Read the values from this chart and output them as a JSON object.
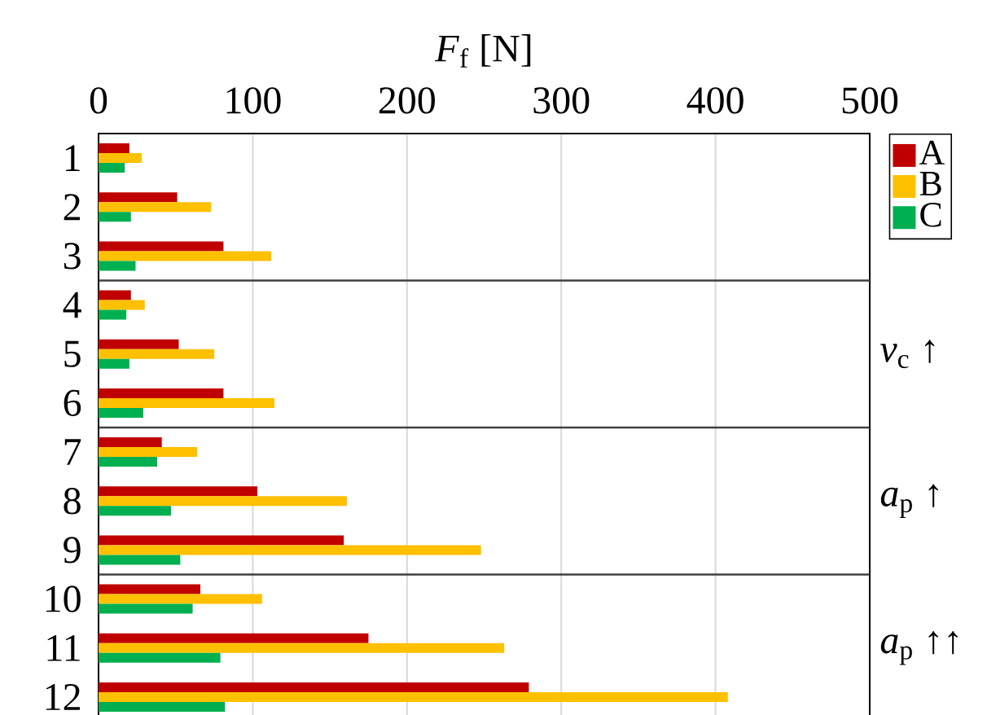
{
  "chart_data": {
    "type": "bar",
    "orientation": "horizontal",
    "xlabel": "*F*$_{f}$ [N]",
    "categories": [
      "1",
      "2",
      "3",
      "4",
      "5",
      "6",
      "7",
      "8",
      "9",
      "10",
      "11",
      "12"
    ],
    "series": [
      {
        "name": "A",
        "color": "#c00000",
        "values": [
          20,
          51,
          81,
          21,
          52,
          81,
          41,
          103,
          159,
          66,
          175,
          279
        ]
      },
      {
        "name": "B",
        "color": "#ffc000",
        "values": [
          28,
          73,
          112,
          30,
          75,
          114,
          64,
          161,
          248,
          106,
          263,
          408
        ]
      },
      {
        "name": "C",
        "color": "#00b050",
        "values": [
          17,
          21,
          24,
          18,
          20,
          29,
          38,
          47,
          53,
          61,
          79,
          82
        ]
      }
    ],
    "xlim": [
      0,
      500
    ],
    "xticks": [
      0,
      100,
      200,
      300,
      400,
      500
    ],
    "grid": "x",
    "legend": "top right",
    "annotations": [
      "*v*$_{c}$ ↑",
      "*a*$_{p}$ ↑",
      "*a*$_{p}$ ↑↑"
    ]
  }
}
